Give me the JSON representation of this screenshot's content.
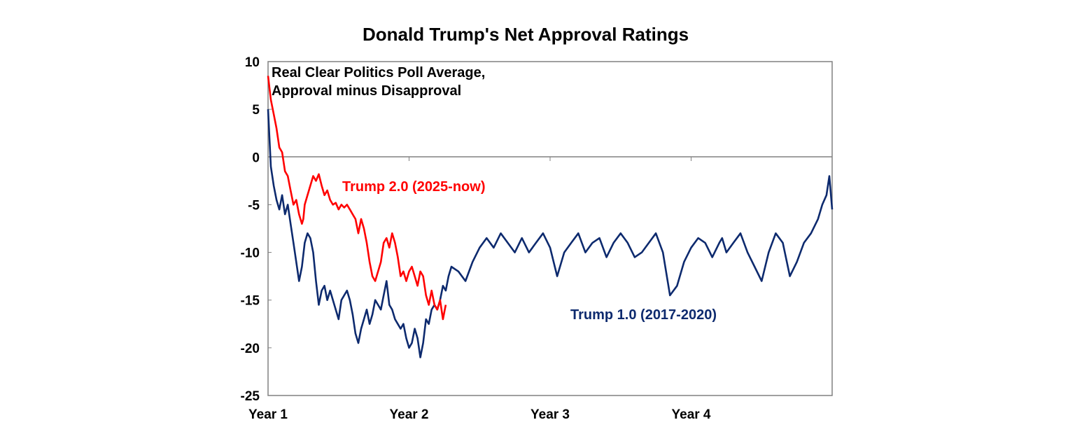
{
  "chart_data": {
    "type": "line",
    "title": "Donald Trump's Net Approval Ratings",
    "xlabel": "",
    "ylabel": "",
    "ylim": [
      -25,
      10
    ],
    "yticks": [
      10,
      5,
      0,
      -5,
      -10,
      -15,
      -20,
      -25
    ],
    "xtick_labels": [
      "Year 1",
      "Year 2",
      "Year 3",
      "Year 4"
    ],
    "x_unit": "years into term",
    "xlim": [
      0,
      4
    ],
    "grid": false,
    "annotations": {
      "note_line1": "Real Clear Politics Poll Average,",
      "note_line2": "Approval minus Disapproval"
    },
    "colors": {
      "trump2": "#ff0000",
      "trump1": "#0d2a6e"
    },
    "series": [
      {
        "name": "Trump 2.0 (2025-now)",
        "color": "#ff0000",
        "x": [
          0.0,
          0.02,
          0.04,
          0.06,
          0.08,
          0.1,
          0.12,
          0.14,
          0.16,
          0.18,
          0.2,
          0.22,
          0.24,
          0.25,
          0.26,
          0.28,
          0.3,
          0.32,
          0.34,
          0.36,
          0.38,
          0.4,
          0.42,
          0.44,
          0.46,
          0.48,
          0.5,
          0.52,
          0.54,
          0.56,
          0.58,
          0.6,
          0.62,
          0.64,
          0.66,
          0.68,
          0.7,
          0.72,
          0.74,
          0.76,
          0.78,
          0.8,
          0.82,
          0.84,
          0.86,
          0.88,
          0.9,
          0.92,
          0.94,
          0.96,
          0.98,
          1.0,
          1.02,
          1.04,
          1.06,
          1.08,
          1.1,
          1.12,
          1.14,
          1.16,
          1.18,
          1.2,
          1.22,
          1.24,
          1.26
        ],
        "values": [
          8.5,
          6.0,
          4.5,
          3.0,
          1.0,
          0.5,
          -1.5,
          -2.0,
          -3.5,
          -5.0,
          -4.5,
          -6.0,
          -7.0,
          -6.5,
          -5.0,
          -4.0,
          -3.0,
          -2.0,
          -2.5,
          -1.8,
          -3.0,
          -4.0,
          -3.5,
          -4.5,
          -5.0,
          -4.8,
          -5.5,
          -5.0,
          -5.3,
          -5.0,
          -5.5,
          -6.0,
          -6.5,
          -8.0,
          -6.5,
          -7.5,
          -9.0,
          -11.0,
          -12.5,
          -13.0,
          -12.0,
          -11.0,
          -9.0,
          -8.5,
          -9.5,
          -8.0,
          -9.0,
          -10.5,
          -12.5,
          -12.0,
          -13.0,
          -12.0,
          -11.5,
          -12.5,
          -13.5,
          -12.0,
          -12.5,
          -14.5,
          -15.5,
          -14.0,
          -15.5,
          -16.0,
          -15.0,
          -17.0,
          -15.5
        ]
      },
      {
        "name": "Trump 1.0 (2017-2020)",
        "color": "#0d2a6e",
        "x": [
          0.0,
          0.02,
          0.04,
          0.06,
          0.08,
          0.1,
          0.12,
          0.14,
          0.16,
          0.18,
          0.2,
          0.22,
          0.24,
          0.26,
          0.28,
          0.3,
          0.32,
          0.34,
          0.36,
          0.38,
          0.4,
          0.42,
          0.44,
          0.46,
          0.48,
          0.5,
          0.52,
          0.54,
          0.56,
          0.58,
          0.6,
          0.62,
          0.64,
          0.66,
          0.68,
          0.7,
          0.72,
          0.74,
          0.76,
          0.78,
          0.8,
          0.82,
          0.84,
          0.86,
          0.88,
          0.9,
          0.92,
          0.94,
          0.96,
          0.98,
          1.0,
          1.02,
          1.04,
          1.06,
          1.08,
          1.1,
          1.12,
          1.14,
          1.16,
          1.18,
          1.2,
          1.22,
          1.24,
          1.26,
          1.28,
          1.3,
          1.35,
          1.4,
          1.45,
          1.5,
          1.55,
          1.6,
          1.65,
          1.7,
          1.75,
          1.8,
          1.85,
          1.9,
          1.95,
          2.0,
          2.05,
          2.1,
          2.15,
          2.2,
          2.25,
          2.3,
          2.35,
          2.4,
          2.45,
          2.5,
          2.55,
          2.6,
          2.65,
          2.7,
          2.75,
          2.8,
          2.85,
          2.9,
          2.95,
          3.0,
          3.05,
          3.1,
          3.15,
          3.2,
          3.22,
          3.25,
          3.3,
          3.35,
          3.4,
          3.45,
          3.5,
          3.55,
          3.6,
          3.65,
          3.7,
          3.75,
          3.8,
          3.85,
          3.9,
          3.93,
          3.96,
          3.98,
          4.0
        ],
        "values": [
          5.0,
          -1.0,
          -3.0,
          -4.5,
          -5.5,
          -4.0,
          -6.0,
          -5.0,
          -7.0,
          -9.0,
          -11.0,
          -13.0,
          -11.5,
          -9.0,
          -8.0,
          -8.5,
          -10.0,
          -13.0,
          -15.5,
          -14.0,
          -13.5,
          -15.0,
          -14.0,
          -15.0,
          -16.0,
          -17.0,
          -15.0,
          -14.5,
          -14.0,
          -15.0,
          -16.5,
          -18.5,
          -19.5,
          -18.0,
          -17.0,
          -16.0,
          -17.5,
          -16.5,
          -15.0,
          -15.5,
          -16.0,
          -14.5,
          -13.0,
          -15.5,
          -16.0,
          -17.0,
          -17.5,
          -18.0,
          -17.5,
          -19.0,
          -20.0,
          -19.5,
          -18.0,
          -19.0,
          -21.0,
          -19.5,
          -17.0,
          -17.5,
          -16.0,
          -15.5,
          -16.0,
          -15.0,
          -13.5,
          -14.0,
          -12.5,
          -11.5,
          -12.0,
          -13.0,
          -11.0,
          -9.5,
          -8.5,
          -9.5,
          -8.0,
          -9.0,
          -10.0,
          -8.5,
          -10.0,
          -9.0,
          -8.0,
          -9.5,
          -12.5,
          -10.0,
          -9.0,
          -8.0,
          -10.0,
          -9.0,
          -8.5,
          -10.5,
          -9.0,
          -8.0,
          -9.0,
          -10.5,
          -10.0,
          -9.0,
          -8.0,
          -10.0,
          -14.5,
          -13.5,
          -11.0,
          -9.5,
          -8.5,
          -9.0,
          -10.5,
          -9.0,
          -8.5,
          -10.0,
          -9.0,
          -8.0,
          -10.0,
          -11.5,
          -13.0,
          -10.0,
          -8.0,
          -9.0,
          -12.5,
          -11.0,
          -9.0,
          -8.0,
          -6.5,
          -5.0,
          -4.0,
          -2.0,
          -5.5
        ]
      }
    ]
  },
  "labels": {
    "trump2": "Trump 2.0 (2025-now)",
    "trump1": "Trump 1.0 (2017-2020)"
  }
}
